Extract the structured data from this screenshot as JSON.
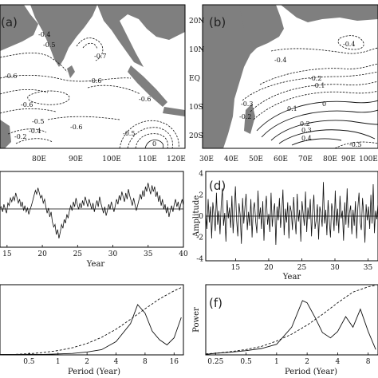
{
  "chart_data": [
    {
      "id": "a",
      "type": "contour",
      "panel_label": "(a)",
      "x_ticks": [
        "80E",
        "90E",
        "100E",
        "110E",
        "120E"
      ],
      "contour_labels": [
        "-0.4",
        "-0.5",
        "-0.7",
        "-0.6",
        "-0.6",
        "-0.6",
        "-0.6",
        "-0.5",
        "-0.6",
        "-0.2",
        "-0.4",
        "-0.5",
        "0"
      ]
    },
    {
      "id": "b",
      "type": "contour",
      "panel_label": "(b)",
      "x_ticks": [
        "30E",
        "40E",
        "50E",
        "60E",
        "70E",
        "80E",
        "90E",
        "100E"
      ],
      "y_ticks": [
        "20N",
        "10N",
        "EQ",
        "10S",
        "20S"
      ],
      "contour_labels": [
        "-0.4",
        "-0.4",
        "-0.2",
        "-0.1",
        "-0.3",
        "-0.2",
        "0.1",
        "0",
        "0.2",
        "0.3",
        "0.4",
        "-0.5"
      ]
    },
    {
      "id": "c",
      "type": "line",
      "xlabel": "Year",
      "x_ticks": [
        "15",
        "20",
        "25",
        "30",
        "35",
        "40"
      ],
      "xlim": [
        14,
        40
      ],
      "series": [
        {
          "values": [
            0.1,
            0.2,
            -0.2,
            0.4,
            0.0,
            -0.3,
            0.5,
            0.3,
            0.9,
            0.6,
            1.0,
            0.7,
            1.3,
            0.9,
            0.5,
            0.8,
            0.2,
            0.6,
            -0.1,
            0.3,
            -0.2,
            0.1,
            -0.4,
            0.0,
            0.3,
            0.7,
            1.1,
            1.5,
            1.2,
            1.7,
            1.3,
            0.9,
            1.1,
            0.5,
            0.8,
            0.2,
            -0.3,
            0.1,
            -0.6,
            -0.2,
            -1.0,
            -1.4,
            -1.2,
            -2.0,
            -1.6,
            -2.3,
            -1.8,
            -1.2,
            -1.5,
            -0.8,
            -1.1,
            -0.4,
            -0.7,
            -0.1,
            0.3,
            -0.1,
            0.6,
            0.2,
            0.9,
            0.4,
            0.0,
            0.5,
            0.1,
            0.7,
            0.3,
            1.0,
            0.6,
            0.2,
            0.8,
            0.4,
            0.0,
            0.5,
            -0.2,
            0.3,
            0.7,
            0.2,
            1.0,
            0.5,
            0.1,
            -0.3,
            0.2,
            -0.5,
            -0.1,
            0.4,
            0.0,
            0.6,
            0.2,
            -0.2,
            0.3,
            0.8,
            0.4,
            1.1,
            0.7,
            1.4,
            1.0,
            0.6,
            1.3,
            0.8,
            1.6,
            1.1,
            0.7,
            0.3,
            0.9,
            0.4,
            -0.1,
            0.3,
            0.7,
            1.2,
            0.8,
            1.5,
            1.0,
            1.8,
            1.4,
            2.1,
            1.6,
            1.2,
            1.9,
            1.4,
            1.8,
            1.0,
            1.4,
            0.6,
            1.1,
            0.3,
            0.8,
            0.0,
            0.4,
            -0.3,
            0.2,
            -0.6,
            -0.1,
            0.3,
            -0.2,
            0.4,
            0.8,
            0.2,
            0.6,
            -0.1,
            0.4,
            0.8,
            0.3
          ]
        }
      ]
    },
    {
      "id": "d",
      "type": "line",
      "panel_label": "(d)",
      "xlabel": "Year",
      "ylabel": "Amplitude",
      "x_ticks": [
        "15",
        "20",
        "25",
        "30",
        "35"
      ],
      "xlim": [
        10.5,
        36.5
      ],
      "y_ticks": [
        "4",
        "2",
        "0",
        "-2",
        "-4"
      ],
      "ylim": [
        -4.2,
        4.2
      ],
      "series": [
        {
          "values": [
            0.4,
            -1.2,
            1.6,
            -0.6,
            0.9,
            -2.1,
            1.3,
            0.2,
            -1.4,
            2.2,
            -0.8,
            0.5,
            -1.7,
            1.1,
            2.6,
            -0.9,
            0.3,
            -2.4,
            1.5,
            -0.2,
            0.8,
            -1.1,
            1.9,
            -1.6,
            0.6,
            2.8,
            -0.4,
            -1.9,
            1.2,
            0.1,
            -2.6,
            1.7,
            -0.7,
            0.9,
            2.1,
            -1.3,
            0.4,
            -0.9,
            1.6,
            -2.0,
            0.7,
            1.3,
            -0.5,
            -1.6,
            2.4,
            -0.3,
            0.8,
            -1.2,
            1.4,
            -2.3,
            0.6,
            1.9,
            -0.8,
            0.2,
            -1.5,
            2.2,
            -1.0,
            0.5,
            1.2,
            -2.7,
            0.9,
            -0.4,
            1.7,
            -1.1,
            0.3,
            2.5,
            -1.8,
            0.7,
            -0.6,
            1.3,
            -2.1,
            1.0,
            0.4,
            -1.3,
            1.8,
            -0.2,
            -1.7,
            2.1,
            -0.5,
            0.6,
            -2.4,
            1.4,
            0.2,
            -0.9,
            2.3,
            -1.5,
            0.8,
            -0.3,
            1.6,
            -1.9,
            0.5,
            2.0,
            -1.2,
            -0.4,
            1.1,
            -2.2,
            0.9,
            0.3,
            -1.0,
            3.2,
            -0.7,
            0.6,
            -1.8,
            1.5,
            -0.5,
            -2.0,
            1.2,
            0.4,
            -1.4,
            2.4,
            -0.9,
            0.7,
            -1.6,
            1.9,
            -0.2,
            0.5,
            -2.3,
            1.3,
            -0.8,
            2.6,
            -1.1,
            0.3,
            1.0,
            -1.7,
            0.6,
            -0.9,
            1.4,
            -2.1,
            0.8,
            2.2,
            -0.6,
            -1.3,
            1.7,
            0.2,
            -2.5,
            1.1,
            -0.4,
            0.9,
            -1.2,
            2.0,
            -0.7,
            3.0,
            -1.6,
            0.5,
            -0.3,
            1.2
          ]
        }
      ]
    },
    {
      "id": "e",
      "type": "line",
      "xlabel": "Period (Year)",
      "x_ticks": [
        "0.5",
        "1",
        "2",
        "4",
        "8",
        "16"
      ],
      "x_scale": "log",
      "xlim": [
        0.25,
        20
      ],
      "ylim": [
        0,
        7.4
      ],
      "series": [
        {
          "style": "solid",
          "x": [
            0.25,
            0.35,
            0.5,
            0.71,
            1.0,
            1.41,
            2.0,
            2.83,
            4.0,
            5.66,
            6.7,
            8.0,
            9.5,
            11.3,
            13.5,
            16.0,
            19.0
          ],
          "values": [
            0.05,
            0.04,
            0.06,
            0.05,
            0.1,
            0.15,
            0.3,
            0.55,
            1.4,
            3.3,
            5.3,
            4.4,
            2.5,
            1.6,
            1.05,
            1.8,
            3.95
          ]
        },
        {
          "style": "dashed",
          "x": [
            0.25,
            0.35,
            0.5,
            0.71,
            1.0,
            1.41,
            2.0,
            2.83,
            4.0,
            5.66,
            8.0,
            11.3,
            16.0,
            19.0
          ],
          "values": [
            0.0,
            0.05,
            0.12,
            0.25,
            0.45,
            0.75,
            1.2,
            1.85,
            2.7,
            3.75,
            4.85,
            5.9,
            6.75,
            7.1
          ]
        }
      ]
    },
    {
      "id": "f",
      "type": "line",
      "panel_label": "(f)",
      "xlabel": "Period (Year)",
      "ylabel": "Power",
      "x_ticks": [
        "0.25",
        "0.5",
        "1",
        "2",
        "4",
        "8"
      ],
      "x_scale": "log",
      "xlim": [
        0.2,
        10
      ],
      "ylim": [
        0,
        6.6
      ],
      "series": [
        {
          "style": "solid",
          "x": [
            0.2,
            0.25,
            0.35,
            0.5,
            0.71,
            1.0,
            1.41,
            1.8,
            2.0,
            2.4,
            2.83,
            3.4,
            4.0,
            4.8,
            5.66,
            6.7,
            8.0,
            9.5
          ],
          "values": [
            0.05,
            0.15,
            0.25,
            0.4,
            0.6,
            1.0,
            2.6,
            5.1,
            4.9,
            3.5,
            2.1,
            1.6,
            2.2,
            3.6,
            2.6,
            4.3,
            2.2,
            0.5
          ]
        },
        {
          "style": "dashed",
          "x": [
            0.2,
            0.25,
            0.35,
            0.5,
            0.71,
            1.0,
            1.41,
            2.0,
            2.83,
            4.0,
            5.66,
            8.0,
            9.5
          ],
          "values": [
            0.1,
            0.15,
            0.3,
            0.5,
            0.8,
            1.3,
            1.95,
            2.8,
            3.8,
            4.9,
            5.9,
            6.4,
            6.55
          ]
        }
      ]
    }
  ]
}
